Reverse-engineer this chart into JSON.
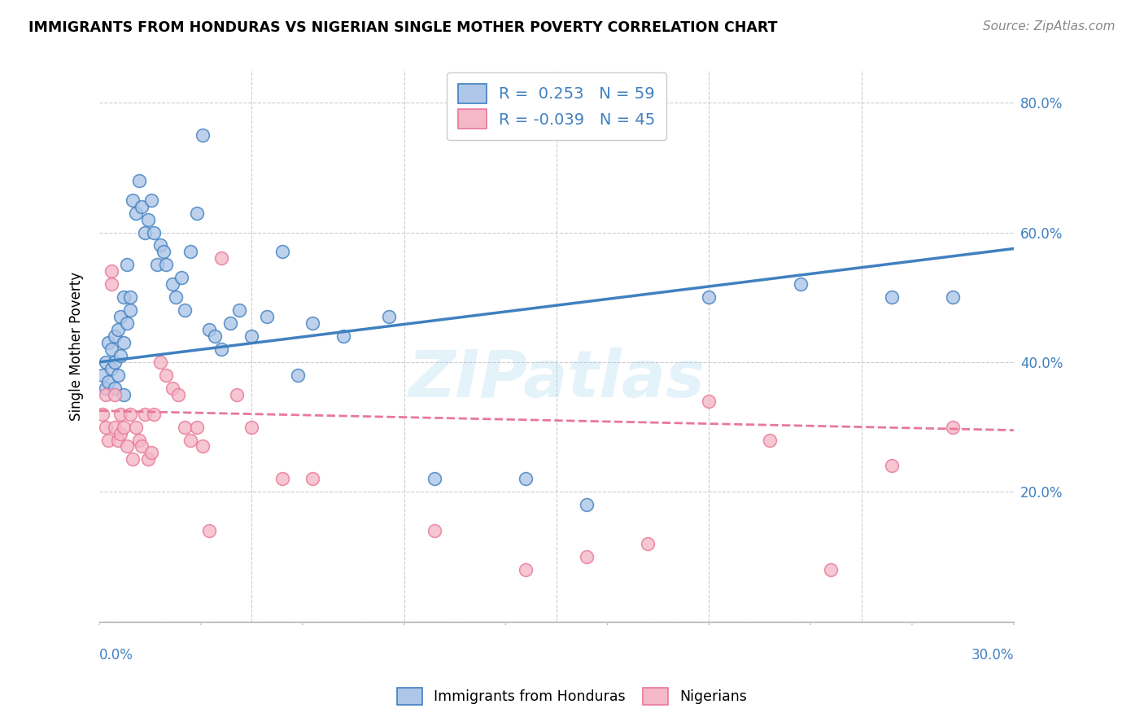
{
  "title": "IMMIGRANTS FROM HONDURAS VS NIGERIAN SINGLE MOTHER POVERTY CORRELATION CHART",
  "source": "Source: ZipAtlas.com",
  "ylabel": "Single Mother Poverty",
  "xlim": [
    0.0,
    0.3
  ],
  "ylim": [
    0.0,
    0.85
  ],
  "y_ticks": [
    0.0,
    0.2,
    0.4,
    0.6,
    0.8
  ],
  "y_tick_labels": [
    "",
    "20.0%",
    "40.0%",
    "60.0%",
    "80.0%"
  ],
  "blue_R": 0.253,
  "blue_N": 59,
  "pink_R": -0.039,
  "pink_N": 45,
  "blue_color": "#aec6e8",
  "pink_color": "#f5b8c8",
  "blue_line_color": "#4080c0",
  "pink_line_color": "#e87898",
  "watermark": "ZIPatlas",
  "legend_label_blue": "Immigrants from Honduras",
  "legend_label_pink": "Nigerians",
  "blue_x": [
    0.001,
    0.002,
    0.002,
    0.003,
    0.003,
    0.004,
    0.004,
    0.005,
    0.005,
    0.005,
    0.006,
    0.006,
    0.007,
    0.007,
    0.008,
    0.008,
    0.008,
    0.009,
    0.009,
    0.01,
    0.01,
    0.011,
    0.012,
    0.013,
    0.014,
    0.015,
    0.016,
    0.017,
    0.018,
    0.019,
    0.02,
    0.021,
    0.022,
    0.024,
    0.025,
    0.027,
    0.028,
    0.03,
    0.032,
    0.034,
    0.036,
    0.038,
    0.04,
    0.043,
    0.046,
    0.05,
    0.055,
    0.06,
    0.065,
    0.07,
    0.08,
    0.095,
    0.11,
    0.14,
    0.16,
    0.2,
    0.23,
    0.26,
    0.28
  ],
  "blue_y": [
    0.38,
    0.36,
    0.4,
    0.37,
    0.43,
    0.39,
    0.42,
    0.36,
    0.4,
    0.44,
    0.38,
    0.45,
    0.41,
    0.47,
    0.43,
    0.35,
    0.5,
    0.55,
    0.46,
    0.48,
    0.5,
    0.65,
    0.63,
    0.68,
    0.64,
    0.6,
    0.62,
    0.65,
    0.6,
    0.55,
    0.58,
    0.57,
    0.55,
    0.52,
    0.5,
    0.53,
    0.48,
    0.57,
    0.63,
    0.75,
    0.45,
    0.44,
    0.42,
    0.46,
    0.48,
    0.44,
    0.47,
    0.57,
    0.38,
    0.46,
    0.44,
    0.47,
    0.22,
    0.22,
    0.18,
    0.5,
    0.52,
    0.5,
    0.5
  ],
  "pink_x": [
    0.001,
    0.002,
    0.002,
    0.003,
    0.004,
    0.004,
    0.005,
    0.005,
    0.006,
    0.007,
    0.007,
    0.008,
    0.009,
    0.01,
    0.011,
    0.012,
    0.013,
    0.014,
    0.015,
    0.016,
    0.017,
    0.018,
    0.02,
    0.022,
    0.024,
    0.026,
    0.028,
    0.03,
    0.032,
    0.034,
    0.036,
    0.04,
    0.045,
    0.05,
    0.06,
    0.07,
    0.11,
    0.14,
    0.16,
    0.18,
    0.2,
    0.22,
    0.24,
    0.26,
    0.28
  ],
  "pink_y": [
    0.32,
    0.3,
    0.35,
    0.28,
    0.54,
    0.52,
    0.3,
    0.35,
    0.28,
    0.32,
    0.29,
    0.3,
    0.27,
    0.32,
    0.25,
    0.3,
    0.28,
    0.27,
    0.32,
    0.25,
    0.26,
    0.32,
    0.4,
    0.38,
    0.36,
    0.35,
    0.3,
    0.28,
    0.3,
    0.27,
    0.14,
    0.56,
    0.35,
    0.3,
    0.22,
    0.22,
    0.14,
    0.08,
    0.1,
    0.12,
    0.34,
    0.28,
    0.08,
    0.24,
    0.3
  ]
}
